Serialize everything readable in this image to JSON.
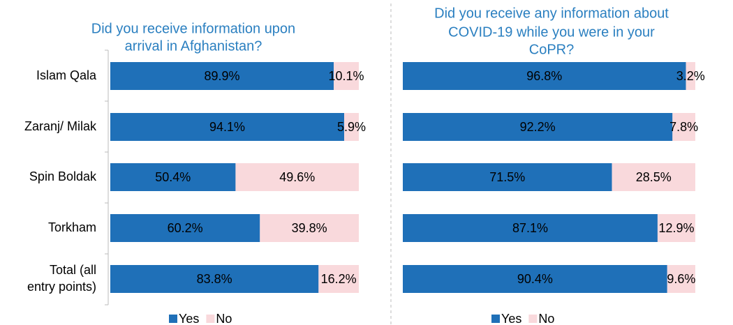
{
  "chart_data": [
    {
      "type": "bar",
      "stacked": true,
      "horizontal": true,
      "title": [
        "Did you receive information upon",
        "arrival in Afghanistan?"
      ],
      "categories": [
        [
          "Islam Qala"
        ],
        [
          "Zaranj/ Milak"
        ],
        [
          "Spin Boldak"
        ],
        [
          "Torkham"
        ],
        [
          "Total (all",
          "entry points)"
        ]
      ],
      "series": [
        {
          "name": "Yes",
          "color": "#1f70b8",
          "values": [
            89.9,
            94.1,
            50.4,
            60.2,
            83.8
          ],
          "value_labels": [
            "89.9%",
            "94.1%",
            "50.4%",
            "60.2%",
            "83.8%"
          ]
        },
        {
          "name": "No",
          "color": "#f9d9dc",
          "values": [
            10.1,
            5.9,
            49.6,
            39.8,
            16.2
          ],
          "value_labels": [
            "10.1%",
            "5.9%",
            "49.6%",
            "39.8%",
            "16.2%"
          ]
        }
      ]
    },
    {
      "type": "bar",
      "stacked": true,
      "horizontal": true,
      "title": [
        "Did you receive any information about",
        "COVID-19 while you were in your",
        "CoPR?"
      ],
      "series": [
        {
          "name": "Yes",
          "color": "#1f70b8",
          "values": [
            96.8,
            92.2,
            71.5,
            87.1,
            90.4
          ],
          "value_labels": [
            "96.8%",
            "92.2%",
            "71.5%",
            "87.1%",
            "90.4%"
          ]
        },
        {
          "name": "No",
          "color": "#f9d9dc",
          "values": [
            3.2,
            7.8,
            28.5,
            12.9,
            9.6
          ],
          "value_labels": [
            "3.2%",
            "7.8%",
            "28.5%",
            "12.9%",
            "9.6%"
          ]
        }
      ]
    }
  ]
}
